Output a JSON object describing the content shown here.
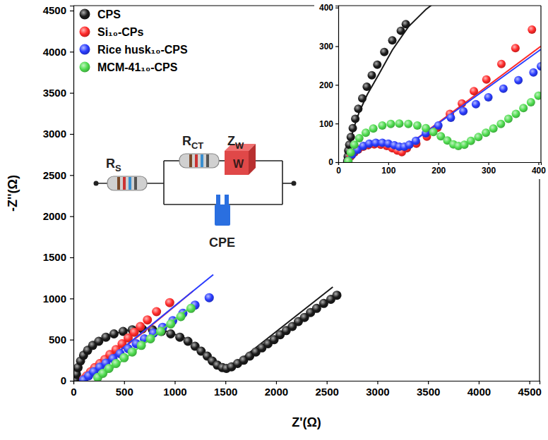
{
  "chart_data": [
    {
      "type": "scatter",
      "x_label": "Z'(Ω)",
      "y_label": "-Z''(Ω)",
      "xlim": [
        0,
        4600
      ],
      "ylim": [
        0,
        4560
      ],
      "xticks": [
        0,
        500,
        1000,
        1500,
        2000,
        2500,
        3000,
        3500,
        4000,
        4500
      ],
      "yticks": [
        0,
        500,
        1000,
        1500,
        2000,
        2500,
        3000,
        3500,
        4000,
        4500
      ],
      "legend": "top-left",
      "marker": "circle",
      "series": [
        {
          "name": "CPS",
          "color": "#1a1a1a",
          "x": [
            20,
            30,
            45,
            70,
            100,
            140,
            190,
            250,
            320,
            400,
            490,
            580,
            680,
            780,
            870,
            960,
            1050,
            1130,
            1200,
            1260,
            1320,
            1370,
            1420,
            1470,
            1510,
            1560,
            1620,
            1680,
            1740,
            1800,
            1860,
            1920,
            1980,
            2040,
            2100,
            2160,
            2220,
            2280,
            2340,
            2400,
            2470,
            2540,
            2600
          ],
          "values": [
            10,
            80,
            160,
            240,
            310,
            370,
            430,
            480,
            530,
            570,
            600,
            620,
            630,
            620,
            600,
            570,
            530,
            480,
            420,
            360,
            300,
            240,
            190,
            160,
            150,
            170,
            210,
            250,
            300,
            350,
            400,
            450,
            500,
            560,
            610,
            660,
            720,
            770,
            830,
            880,
            940,
            990,
            1040
          ],
          "fit": {
            "x": [
              20,
              60,
              150,
              300,
              500,
              700,
              900,
              1100,
              1250,
              1380,
              1460,
              1500,
              1560,
              2560
            ],
            "values": [
              0,
              230,
              390,
              520,
              610,
              640,
              610,
              520,
              390,
              250,
              170,
              145,
              170,
              1140
            ]
          }
        },
        {
          "name": "Si₁₀-CPs",
          "color": "#ff2a2a",
          "x": [
            100,
            130,
            170,
            210,
            260,
            310,
            360,
            420,
            480,
            540,
            600,
            660,
            730,
            820,
            950
          ],
          "values": [
            20,
            60,
            110,
            160,
            210,
            260,
            320,
            380,
            450,
            520,
            590,
            660,
            740,
            840,
            950
          ],
          "fit": {
            "x": [
              90,
              640,
              1180
            ],
            "values": [
              0,
              540,
              1090
            ]
          }
        },
        {
          "name": "Rice husk₁₀-CPS",
          "color": "#2a3cff",
          "x": [
            100,
            150,
            200,
            260,
            320,
            390,
            460,
            540,
            620,
            700,
            790,
            880,
            980,
            1080,
            1200,
            1340
          ],
          "values": [
            10,
            60,
            110,
            165,
            215,
            270,
            330,
            390,
            450,
            510,
            580,
            650,
            730,
            820,
            920,
            1010
          ],
          "fit": {
            "x": [
              90,
              735,
              1380
            ],
            "values": [
              0,
              645,
              1290
            ]
          }
        },
        {
          "name": "MCM-41₁₀-CPS",
          "color": "#4fdc4f",
          "x": [
            240,
            290,
            350,
            420,
            500,
            580,
            670,
            760,
            860,
            960,
            1060,
            1160
          ],
          "values": [
            40,
            90,
            150,
            210,
            280,
            350,
            430,
            510,
            600,
            690,
            780,
            880
          ],
          "fit": {
            "x": [
              230,
              1180
            ],
            "values": [
              0,
              920
            ]
          }
        }
      ],
      "circuit_labels": [
        {
          "text": "R",
          "sub": "S"
        },
        {
          "text": "R",
          "sub": "CT"
        },
        {
          "text": "Z",
          "sub": "W"
        },
        {
          "text": "W"
        },
        {
          "text": "CPE"
        }
      ]
    },
    {
      "type": "scatter",
      "xlim": [
        0,
        405
      ],
      "ylim": [
        0,
        405
      ],
      "xticks": [
        0,
        100,
        200,
        300,
        400
      ],
      "yticks": [
        0,
        100,
        200,
        300,
        400
      ],
      "marker": "circle",
      "series": [
        {
          "color": "#1a1a1a",
          "x": [
            18,
            19,
            20,
            22,
            25,
            29,
            34,
            40,
            48,
            57,
            67,
            78,
            92,
            108,
            125,
            135
          ],
          "values": [
            3,
            15,
            30,
            45,
            65,
            88,
            112,
            138,
            165,
            195,
            225,
            252,
            285,
            315,
            340,
            357
          ],
          "fit": {
            "x": [
              18,
              22,
              30,
              42,
              58,
              80,
              108,
              140,
              175,
              190
            ],
            "values": [
              0,
              40,
              85,
              130,
              175,
              225,
              290,
              350,
              395,
              410
            ]
          }
        },
        {
          "color": "#ff2a2a",
          "x": [
            20,
            25,
            32,
            40,
            50,
            60,
            72,
            85,
            97,
            108,
            118,
            127,
            137,
            156,
            177,
            198,
            223,
            247,
            271,
            296,
            326,
            354,
            387
          ],
          "values": [
            3,
            15,
            25,
            33,
            40,
            44,
            46,
            45,
            42,
            36,
            30,
            26,
            36,
            48,
            66,
            89,
            125,
            152,
            184,
            214,
            254,
            295,
            343
          ],
          "fit": {
            "x": [
              130,
              405
            ],
            "values": [
              35,
              300
            ]
          }
        },
        {
          "color": "#2a3cff",
          "x": [
            20,
            28,
            38,
            50,
            62,
            75,
            88,
            100,
            112,
            122,
            132,
            142,
            155,
            175,
            200,
            225,
            250,
            275,
            300,
            330,
            360,
            390,
            405
          ],
          "values": [
            3,
            20,
            32,
            42,
            48,
            50,
            50,
            48,
            44,
            40,
            40,
            45,
            55,
            75,
            95,
            115,
            132,
            150,
            168,
            190,
            212,
            232,
            248
          ],
          "fit": {
            "x": [
              135,
              405
            ],
            "values": [
              40,
              292
            ]
          }
        },
        {
          "color": "#4fdc4f",
          "x": [
            20,
            25,
            32,
            42,
            55,
            70,
            88,
            105,
            122,
            140,
            158,
            175,
            190,
            205,
            218,
            230,
            240,
            252,
            265,
            280,
            295,
            310,
            325,
            340,
            355,
            370,
            385,
            400
          ],
          "values": [
            3,
            25,
            45,
            62,
            76,
            87,
            95,
            99,
            100,
            99,
            95,
            88,
            78,
            67,
            56,
            46,
            42,
            45,
            55,
            65,
            76,
            87,
            99,
            112,
            125,
            140,
            155,
            172
          ]
        }
      ]
    }
  ]
}
